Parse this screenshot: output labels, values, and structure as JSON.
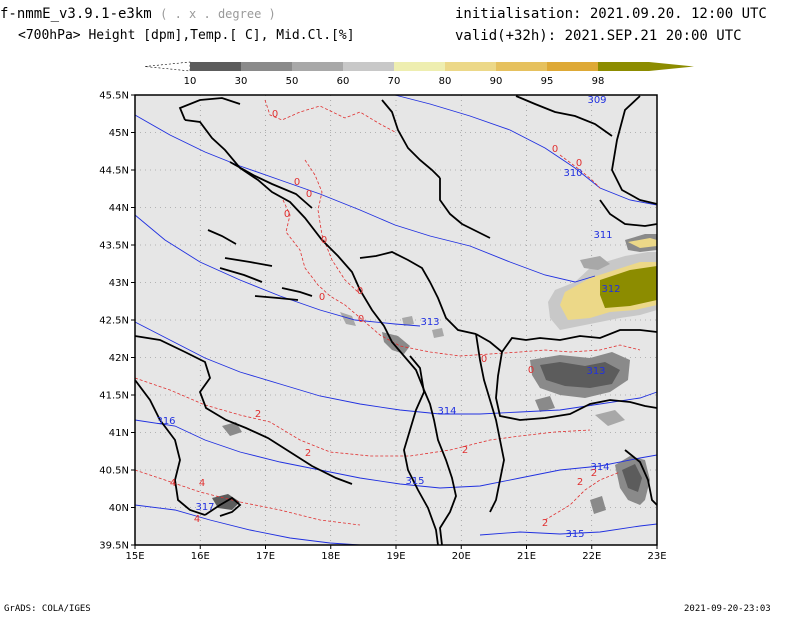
{
  "header": {
    "model": "f-nmmE_v3.9.1-e3km",
    "model_sub": "( . x . degree )",
    "fields": "<700hPa> Height [dpm],Temp.[ C], Mid.Cl.[%]",
    "init": "initialisation:  2021.09.20.  12:00 UTC",
    "valid": "valid(+32h):  2021.SEP.21  20:00 UTC"
  },
  "colorbar": {
    "labels": [
      "10",
      "30",
      "50",
      "60",
      "70",
      "80",
      "90",
      "95",
      "98"
    ],
    "colors": [
      "#5c5c5c",
      "#8a8a8a",
      "#a8a8a8",
      "#c8c8c8",
      "#eeeeb0",
      "#ecd888",
      "#e6c15e",
      "#dea936",
      "#8c8c00"
    ]
  },
  "map": {
    "lon_labels": [
      "15E",
      "16E",
      "17E",
      "18E",
      "19E",
      "20E",
      "21E",
      "22E",
      "23E"
    ],
    "lat_labels": [
      "45.5N",
      "45N",
      "44.5N",
      "44N",
      "43.5N",
      "43N",
      "42.5N",
      "42N",
      "41.5N",
      "41N",
      "40.5N",
      "40N",
      "39.5N"
    ],
    "height_labels": [
      "309",
      "310",
      "311",
      "312",
      "313",
      "313",
      "314",
      "314",
      "315",
      "315",
      "316",
      "317"
    ],
    "temp_labels": [
      "0",
      "0",
      "0",
      "0",
      "0",
      "0",
      "0",
      "0",
      "0",
      "0",
      "0",
      "0",
      "2",
      "2",
      "2",
      "2",
      "2",
      "2",
      "4",
      "4",
      "4"
    ],
    "colors": {
      "land": "#e6e6e6",
      "height": "#2030e0",
      "temp": "#e03030",
      "coast": "#000000"
    }
  },
  "footer": {
    "credit": "GrADS: COLA/IGES",
    "stamp": "2021-09-20-23:03"
  }
}
